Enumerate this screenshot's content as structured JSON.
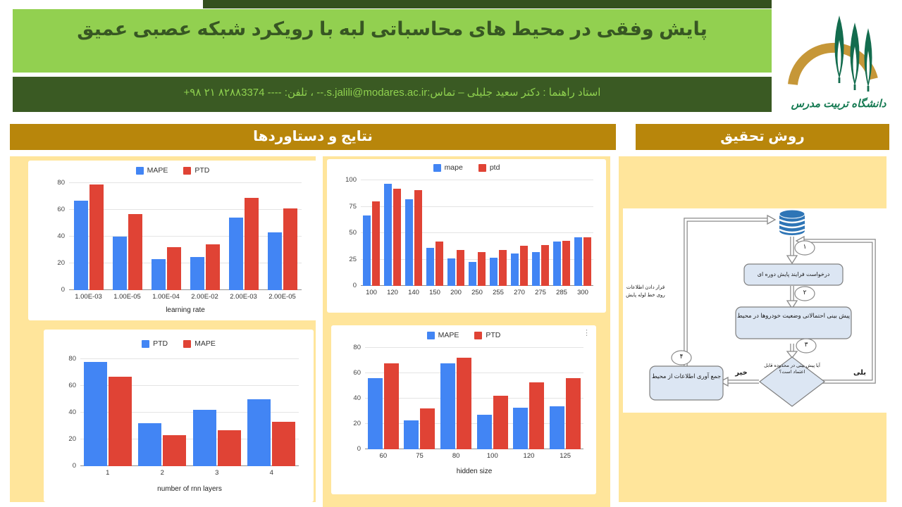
{
  "header": {
    "title": "پایش وفقی در محیط های محاسباتی لبه با رویکرد شبکه عصبی عمیق",
    "supervisor_line": "استاد راهنما : دکتر سعید جلیلی – تماس:s.jalili@modares.ac.ir.-- ، تلفن: ---- ۸۲۸۸3374 ۲۱ ۹۸+",
    "logo_text": "دانشگاه تربیت مدرس"
  },
  "sections": {
    "results_title": "نتایج و دستاوردها",
    "method_title": "روش تحقیق"
  },
  "colors": {
    "header_green": "#92D050",
    "header_dark_green": "#3A5A23",
    "section_gold": "#B8860B",
    "panel_yellow": "#FFE59B",
    "chart_blue": "#4285F4",
    "chart_red": "#E04335",
    "flow_box_blue": "#DCE6F3",
    "db_blue": "#2E75B6"
  },
  "chart_data": [
    {
      "type": "bar",
      "categories": [
        "1.00E-03",
        "1.00E-05",
        "1.00E-04",
        "2.00E-02",
        "2.00E-03",
        "2.00E-05"
      ],
      "series": [
        {
          "name": "MAPE",
          "color": "#4285F4",
          "values": [
            67,
            40,
            23,
            25,
            54,
            43
          ]
        },
        {
          "name": "PTD",
          "color": "#E04335",
          "values": [
            79,
            57,
            32,
            34,
            69,
            61
          ]
        }
      ],
      "title": "",
      "xlabel": "learning rate",
      "ylabel": "",
      "ylim": [
        0,
        80
      ],
      "yticks": [
        0,
        20,
        40,
        60,
        80
      ],
      "grid": true,
      "legend_position": "top"
    },
    {
      "type": "bar",
      "categories": [
        "100",
        "120",
        "140",
        "150",
        "200",
        "250",
        "255",
        "270",
        "275",
        "285",
        "300"
      ],
      "series": [
        {
          "name": "mape",
          "color": "#4285F4",
          "values": [
            67,
            97,
            82,
            36,
            26,
            23,
            27,
            31,
            32,
            42,
            46
          ]
        },
        {
          "name": "ptd",
          "color": "#E04335",
          "values": [
            80,
            92,
            91,
            42,
            34,
            32,
            34,
            38,
            39,
            43,
            46
          ]
        }
      ],
      "title": "",
      "xlabel": "",
      "ylabel": "",
      "ylim": [
        0,
        100
      ],
      "yticks": [
        0,
        25,
        50,
        75,
        100
      ],
      "grid": true,
      "legend_position": "top"
    },
    {
      "type": "bar",
      "categories": [
        "1",
        "2",
        "3",
        "4"
      ],
      "series": [
        {
          "name": "PTD",
          "color": "#4285F4",
          "values": [
            78,
            32,
            42,
            50
          ]
        },
        {
          "name": "MAPE",
          "color": "#E04335",
          "values": [
            67,
            23,
            27,
            33
          ]
        }
      ],
      "title": "",
      "xlabel": "number of rnn layers",
      "ylabel": "",
      "ylim": [
        0,
        80
      ],
      "yticks": [
        0,
        20,
        40,
        60,
        80
      ],
      "grid": true,
      "legend_position": "top"
    },
    {
      "type": "bar",
      "categories": [
        "60",
        "75",
        "80",
        "100",
        "120",
        "125"
      ],
      "series": [
        {
          "name": "MAPE",
          "color": "#4285F4",
          "values": [
            56,
            23,
            68,
            27,
            33,
            34
          ]
        },
        {
          "name": "PTD",
          "color": "#E04335",
          "values": [
            68,
            32,
            72,
            42,
            53,
            56
          ]
        }
      ],
      "title": "",
      "xlabel": "hidden size",
      "ylabel": "",
      "ylim": [
        0,
        80
      ],
      "yticks": [
        0,
        20,
        40,
        60,
        80
      ],
      "grid": true,
      "legend_position": "top",
      "menu_icon": "⋮"
    }
  ],
  "flowchart": {
    "box1": "درخواست فرایند پایش دوره ای",
    "box2": "پیش بینی احتمالاتی وضعیت خودروها در محیط",
    "diamond": "آیا پیش بینی در محدوده قابل اعتماد است؟",
    "box4": "جمع آوری اطلاعات از محیط",
    "no_label": "خیر",
    "yes_label": "بلی",
    "pipeline_note": "قرار دادن اطلاعات روی خط لوله پایش",
    "step1": "۱",
    "step2": "۲",
    "step3": "۳",
    "step4": "۴"
  }
}
